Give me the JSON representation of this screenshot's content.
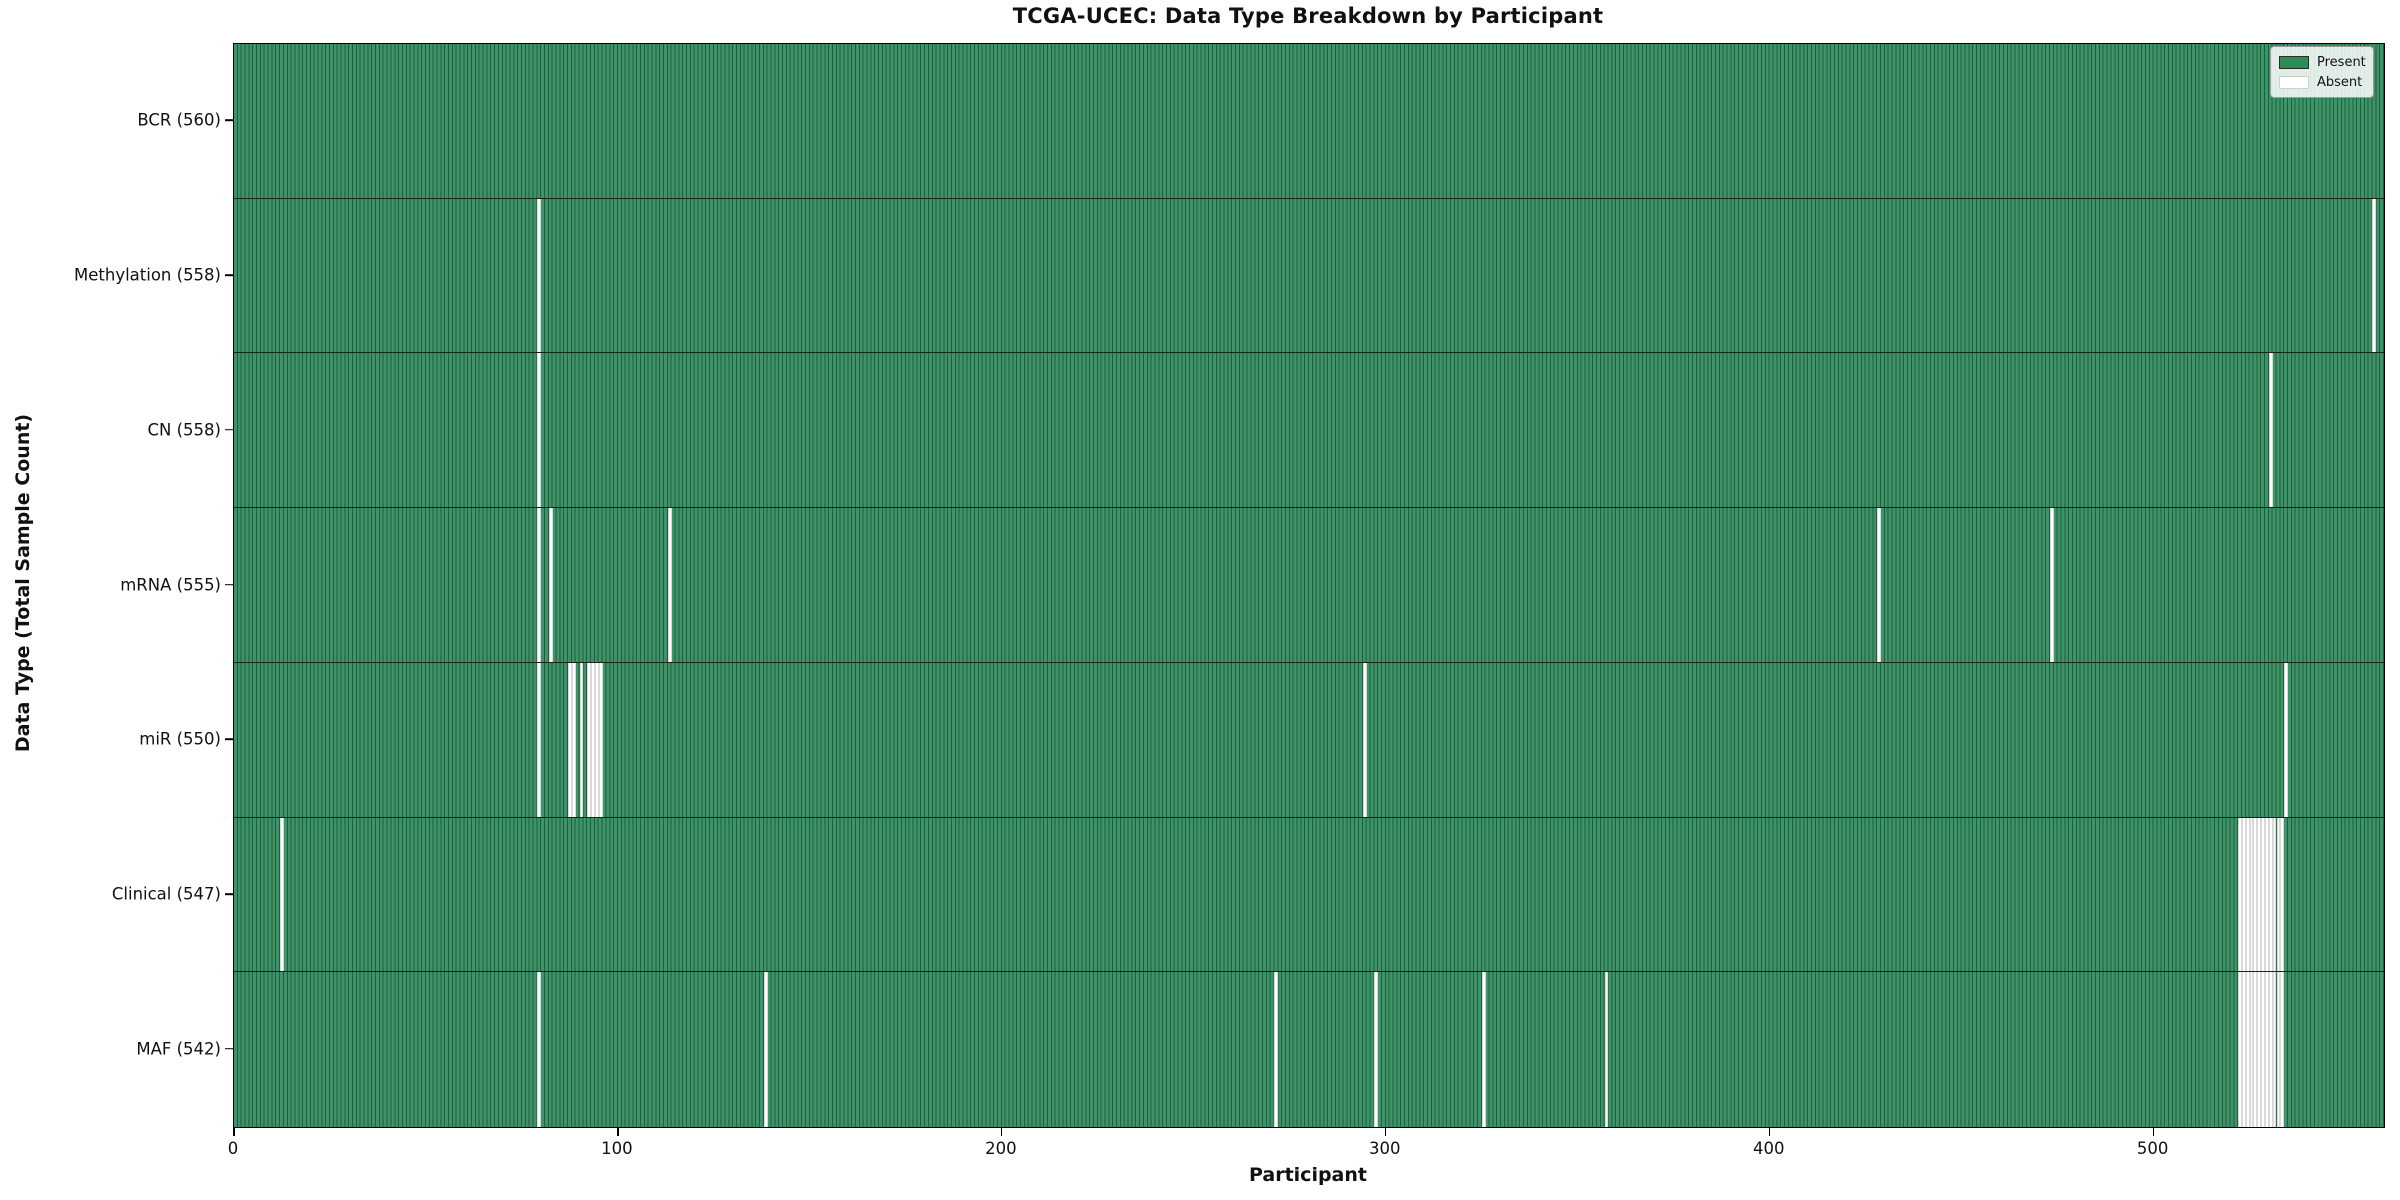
{
  "title": "TCGA-UCEC: Data Type Breakdown by Participant",
  "colors": {
    "present_fill": "#3E9468",
    "present_edge": "#1D5E3C",
    "absent_fill": "#FFFFFF",
    "legend_present_swatch": "#2E8B57"
  },
  "chart_data": {
    "type": "heatmap",
    "title": "TCGA-UCEC: Data Type Breakdown by Participant",
    "xlabel": "Participant",
    "ylabel": "Data Type (Total Sample Count)",
    "x_range": [
      0,
      560
    ],
    "x_ticks": [
      0,
      100,
      200,
      300,
      400,
      500
    ],
    "n_participants": 560,
    "grid": false,
    "legend": [
      "Present",
      "Absent"
    ],
    "legend_position": "upper right",
    "cell_states": {
      "present": 1,
      "absent": 0
    },
    "rows": [
      {
        "label": "BCR (560)",
        "data_type": "BCR",
        "total": 560,
        "absent_participants": []
      },
      {
        "label": "Methylation (558)",
        "data_type": "Methylation",
        "total": 558,
        "absent_participants": [
          79,
          557
        ]
      },
      {
        "label": "CN (558)",
        "data_type": "CN",
        "total": 558,
        "absent_participants": [
          79,
          530
        ]
      },
      {
        "label": "mRNA (555)",
        "data_type": "mRNA",
        "total": 555,
        "absent_participants": [
          79,
          82,
          113,
          428,
          473
        ]
      },
      {
        "label": "miR (550)",
        "data_type": "miR",
        "total": 550,
        "absent_participants": [
          79,
          87,
          88,
          90,
          92,
          93,
          94,
          95,
          294,
          534
        ]
      },
      {
        "label": "Clinical (547)",
        "data_type": "Clinical",
        "total": 547,
        "absent_participants": [
          12,
          522,
          523,
          524,
          525,
          526,
          527,
          528,
          529,
          530,
          531,
          532,
          533
        ]
      },
      {
        "label": "MAF (542)",
        "data_type": "MAF",
        "total": 542,
        "absent_participants": [
          79,
          138,
          271,
          297,
          325,
          357,
          522,
          523,
          524,
          525,
          526,
          527,
          528,
          529,
          530,
          531,
          532,
          533
        ]
      }
    ]
  }
}
